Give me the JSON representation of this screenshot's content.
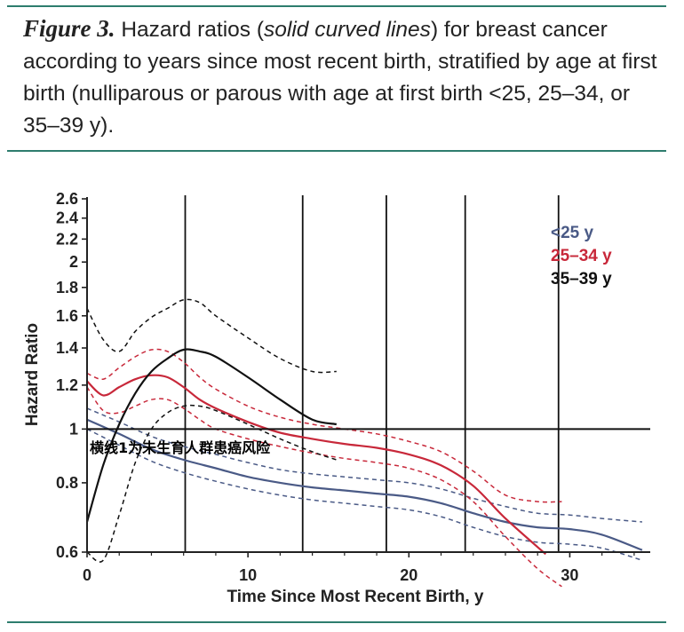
{
  "caption": {
    "fig_label": "Figure 3.",
    "text_a": " Hazard ratios (",
    "text_italic": "solid curved lines",
    "text_b": ") for breast cancer according to years since most recent birth, stratified by age at first birth (nulliparous or parous with age at first birth <25, 25–34, or 35–39 y)."
  },
  "chart_data": {
    "type": "line",
    "title": "",
    "xlabel": "Time Since Most Recent Birth, y",
    "ylabel": "Hazard Ratio",
    "y_scale": "log",
    "xlim": [
      0,
      35
    ],
    "ylim": [
      0.6,
      2.6
    ],
    "x_ticks": [
      "0",
      "10",
      "20",
      "30"
    ],
    "x_tick_values": [
      0,
      10,
      20,
      30
    ],
    "y_ticks": [
      "0.6",
      "0.8",
      "1",
      "1.2",
      "1.4",
      "1.6",
      "1.8",
      "2",
      "2.2",
      "2.4",
      "2.6"
    ],
    "y_tick_values": [
      0.6,
      0.8,
      1,
      1.2,
      1.4,
      1.6,
      1.8,
      2,
      2.2,
      2.4,
      2.6
    ],
    "vertical_lines_x": [
      6.1,
      13.4,
      18.6,
      23.5,
      29.3
    ],
    "reference_line_y": 1,
    "annotation": "横线1为未生育人群患癌风险",
    "legend_position": "top-right",
    "series": [
      {
        "name": "<25 y",
        "color": "#4a5a86",
        "line": "solid",
        "x": [
          0,
          2,
          4,
          6,
          8,
          10,
          12,
          14,
          16,
          18,
          20,
          22,
          24,
          26,
          28,
          30,
          32,
          34.5
        ],
        "y": [
          1.04,
          0.98,
          0.92,
          0.88,
          0.85,
          0.82,
          0.8,
          0.785,
          0.775,
          0.765,
          0.755,
          0.735,
          0.705,
          0.68,
          0.665,
          0.66,
          0.645,
          0.605
        ]
      },
      {
        "name": "25–34 y",
        "color": "#c8283a",
        "line": "solid",
        "x": [
          0,
          1,
          2,
          3,
          4,
          5,
          6,
          7,
          8,
          10,
          12,
          14,
          16,
          18,
          20,
          22,
          24,
          26,
          28.5
        ],
        "y": [
          1.22,
          1.15,
          1.19,
          1.23,
          1.25,
          1.24,
          1.19,
          1.13,
          1.09,
          1.03,
          0.985,
          0.96,
          0.94,
          0.925,
          0.9,
          0.86,
          0.79,
          0.69,
          0.595
        ]
      },
      {
        "name": "35–39 y",
        "color": "#111111",
        "line": "solid",
        "x": [
          0,
          1,
          2,
          3,
          4,
          5,
          6,
          7,
          8,
          10,
          12,
          14,
          15.5
        ],
        "y": [
          0.68,
          0.86,
          1.02,
          1.16,
          1.27,
          1.34,
          1.39,
          1.38,
          1.35,
          1.24,
          1.13,
          1.04,
          1.02
        ]
      }
    ],
    "confidence_bands": [
      {
        "series": "<25 y",
        "color": "#4a5a86",
        "upper": {
          "x": [
            0,
            2,
            4,
            6,
            8,
            10,
            12,
            14,
            16,
            18,
            20,
            22,
            24,
            26,
            28,
            30,
            32,
            34.5
          ],
          "y": [
            1.09,
            1.03,
            0.97,
            0.93,
            0.9,
            0.87,
            0.845,
            0.83,
            0.82,
            0.81,
            0.8,
            0.78,
            0.75,
            0.725,
            0.705,
            0.7,
            0.69,
            0.68
          ]
        },
        "lower": {
          "x": [
            0,
            2,
            4,
            6,
            8,
            10,
            12,
            14,
            16,
            18,
            20,
            22,
            24,
            26,
            28,
            30,
            32,
            34.5
          ],
          "y": [
            1.0,
            0.935,
            0.875,
            0.835,
            0.805,
            0.78,
            0.76,
            0.745,
            0.735,
            0.725,
            0.715,
            0.695,
            0.665,
            0.64,
            0.625,
            0.62,
            0.61,
            0.58
          ]
        }
      },
      {
        "series": "25–34 y",
        "color": "#c8283a",
        "upper": {
          "x": [
            0,
            1,
            2,
            3,
            4,
            5,
            6,
            7,
            8,
            10,
            12,
            14,
            16,
            18,
            20,
            22,
            24,
            26,
            28,
            29.5
          ],
          "y": [
            1.26,
            1.23,
            1.29,
            1.35,
            1.39,
            1.38,
            1.32,
            1.24,
            1.18,
            1.1,
            1.05,
            1.02,
            1.0,
            0.98,
            0.95,
            0.91,
            0.84,
            0.76,
            0.74,
            0.74
          ]
        },
        "lower": {
          "x": [
            0,
            1,
            2,
            3,
            4,
            5,
            6,
            7,
            8,
            10,
            12,
            14,
            16,
            18,
            20,
            22,
            24,
            26,
            28,
            29.5
          ],
          "y": [
            1.19,
            1.08,
            1.07,
            1.1,
            1.13,
            1.13,
            1.09,
            1.04,
            1.0,
            0.96,
            0.93,
            0.905,
            0.885,
            0.87,
            0.85,
            0.81,
            0.74,
            0.64,
            0.56,
            0.52
          ]
        }
      },
      {
        "series": "35–39 y",
        "color": "#111111",
        "upper": {
          "x": [
            0,
            1,
            2,
            3,
            4,
            5,
            6,
            7,
            8,
            10,
            12,
            14,
            15.5
          ],
          "y": [
            1.65,
            1.45,
            1.38,
            1.5,
            1.59,
            1.65,
            1.71,
            1.69,
            1.6,
            1.46,
            1.34,
            1.27,
            1.27
          ]
        },
        "lower": {
          "x": [
            0,
            1,
            2,
            3,
            4,
            5,
            6,
            7,
            8,
            10,
            12,
            14,
            15.5
          ],
          "y": [
            0.6,
            0.58,
            0.7,
            0.87,
            1.0,
            1.07,
            1.1,
            1.1,
            1.08,
            1.02,
            0.96,
            0.91,
            0.88
          ]
        }
      }
    ]
  }
}
